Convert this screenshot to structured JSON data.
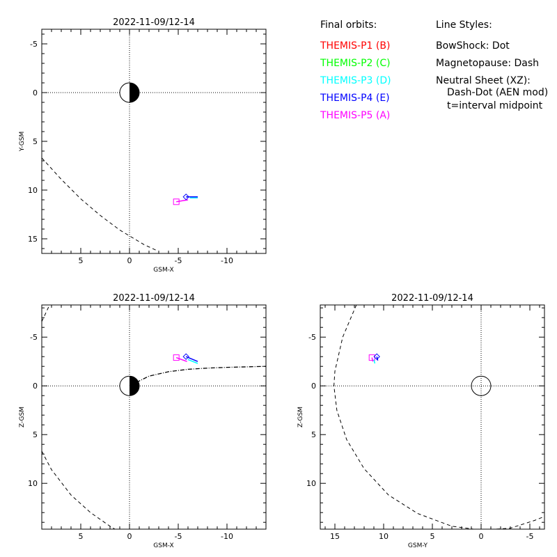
{
  "colors": {
    "P1": "#ff0000",
    "P2": "#00ff00",
    "P3": "#00ffff",
    "P4": "#0000ff",
    "P5": "#ff00ff",
    "ink": "#000000"
  },
  "legend": {
    "orbits_title": "Final orbits:",
    "orbits": [
      {
        "label": "THEMIS-P1 (B)",
        "color": "#ff0000"
      },
      {
        "label": "THEMIS-P2 (C)",
        "color": "#00ff00"
      },
      {
        "label": "THEMIS-P3 (D)",
        "color": "#00ffff"
      },
      {
        "label": "THEMIS-P4 (E)",
        "color": "#0000ff"
      },
      {
        "label": "THEMIS-P5 (A)",
        "color": "#ff00ff"
      }
    ],
    "styles_title": "Line Styles:",
    "styles": [
      "BowShock: Dot",
      "Magnetopause: Dash",
      "Neutral Sheet (XZ):",
      "  Dash-Dot (AEN mod)",
      "  t=interval midpoint"
    ]
  },
  "chart_data": [
    {
      "type": "scatter",
      "title": "2022-11-09/12-14",
      "xlabel": "GSM-X",
      "ylabel": "Y-GSM",
      "xlim": [
        9,
        -14
      ],
      "ylim": [
        -6.5,
        16.5
      ],
      "xticks": [
        5,
        0,
        -5,
        -10
      ],
      "yticks": [
        -5,
        0,
        5,
        10,
        15
      ],
      "earth": "day-night",
      "magnetopause": [
        [
          9,
          6.7
        ],
        [
          7,
          8.9
        ],
        [
          5,
          10.9
        ],
        [
          3,
          12.6
        ],
        [
          1,
          14.1
        ],
        [
          -1,
          15.3
        ],
        [
          -1.5,
          15.6
        ],
        [
          -2.8,
          16.2
        ]
      ],
      "spacecraft": [
        {
          "probe": "P5",
          "marker": "square",
          "pos": [
            -4.8,
            11.2
          ],
          "track": [
            [
              -4.8,
              11.2
            ],
            [
              -6.0,
              11.0
            ]
          ]
        },
        {
          "probe": "P3",
          "marker": "none",
          "pos": [
            -6.2,
            10.9
          ],
          "track": [
            [
              -6.2,
              10.8
            ],
            [
              -7.0,
              10.8
            ]
          ]
        },
        {
          "probe": "P4",
          "marker": "diamond",
          "pos": [
            -5.8,
            10.7
          ],
          "track": [
            [
              -5.8,
              10.7
            ],
            [
              -7.0,
              10.7
            ]
          ]
        }
      ]
    },
    {
      "type": "scatter",
      "title": "2022-11-09/12-14",
      "xlabel": "GSM-X",
      "ylabel": "Z-GSM",
      "xlim": [
        9,
        -14
      ],
      "ylim": [
        -8.3,
        14.7
      ],
      "xticks": [
        5,
        0,
        -5,
        -10
      ],
      "yticks": [
        -5,
        0,
        5,
        10
      ],
      "earth": "day-night",
      "magnetopause": [
        [
          9,
          6.7
        ],
        [
          8,
          8.6
        ],
        [
          6,
          11.2
        ],
        [
          4,
          13.0
        ],
        [
          2,
          14.4
        ],
        [
          1.5,
          14.7
        ]
      ],
      "magnetopause_lower": [
        [
          9,
          -6.6
        ],
        [
          8.2,
          -8.3
        ]
      ],
      "neutral_sheet": [
        [
          0,
          0
        ],
        [
          -2,
          -1.0
        ],
        [
          -4,
          -1.45
        ],
        [
          -6,
          -1.7
        ],
        [
          -8,
          -1.82
        ],
        [
          -10,
          -1.9
        ],
        [
          -12,
          -1.95
        ],
        [
          -14,
          -2.0
        ]
      ],
      "spacecraft": [
        {
          "probe": "P5",
          "marker": "square",
          "pos": [
            -4.8,
            -2.9
          ],
          "track": [
            [
              -4.8,
              -2.9
            ],
            [
              -5.9,
              -2.5
            ]
          ]
        },
        {
          "probe": "P3",
          "marker": "none",
          "pos": [
            -6.0,
            -2.6
          ],
          "track": [
            [
              -6.0,
              -2.7
            ],
            [
              -7.0,
              -2.3
            ]
          ]
        },
        {
          "probe": "P4",
          "marker": "diamond",
          "pos": [
            -5.8,
            -3.0
          ],
          "track": [
            [
              -5.8,
              -3.0
            ],
            [
              -7.0,
              -2.5
            ]
          ]
        }
      ]
    },
    {
      "type": "scatter",
      "title": "2022-11-09/12-14",
      "xlabel": "GSM-Y",
      "ylabel": "Z-GSM",
      "xlim": [
        16.5,
        -6.5
      ],
      "ylim": [
        -8.3,
        14.7
      ],
      "xticks": [
        15,
        10,
        5,
        0,
        -5
      ],
      "yticks": [
        -5,
        0,
        5,
        10
      ],
      "earth": "circle",
      "magnetopause": [
        [
          12.8,
          -8.3
        ],
        [
          14.2,
          -5
        ],
        [
          15.0,
          -1.5
        ],
        [
          15.1,
          0
        ],
        [
          14.8,
          2.5
        ],
        [
          13.8,
          5.5
        ],
        [
          12.0,
          8.5
        ],
        [
          9.5,
          11.2
        ],
        [
          6.5,
          13.1
        ],
        [
          3.0,
          14.4
        ],
        [
          0,
          14.8
        ],
        [
          -3.0,
          14.6
        ],
        [
          -5.5,
          13.8
        ],
        [
          -6.5,
          13.4
        ]
      ],
      "spacecraft": [
        {
          "probe": "P5",
          "marker": "square",
          "pos": [
            11.2,
            -2.9
          ],
          "track": [
            [
              11.2,
              -2.9
            ],
            [
              11.1,
              -2.5
            ]
          ]
        },
        {
          "probe": "P3",
          "marker": "none",
          "pos": [
            11.0,
            -2.7
          ],
          "track": [
            [
              11.0,
              -2.7
            ],
            [
              10.9,
              -2.3
            ]
          ]
        },
        {
          "probe": "P4",
          "marker": "diamond",
          "pos": [
            10.7,
            -3.0
          ],
          "track": [
            [
              10.7,
              -3.0
            ],
            [
              10.6,
              -2.6
            ]
          ]
        }
      ]
    }
  ]
}
